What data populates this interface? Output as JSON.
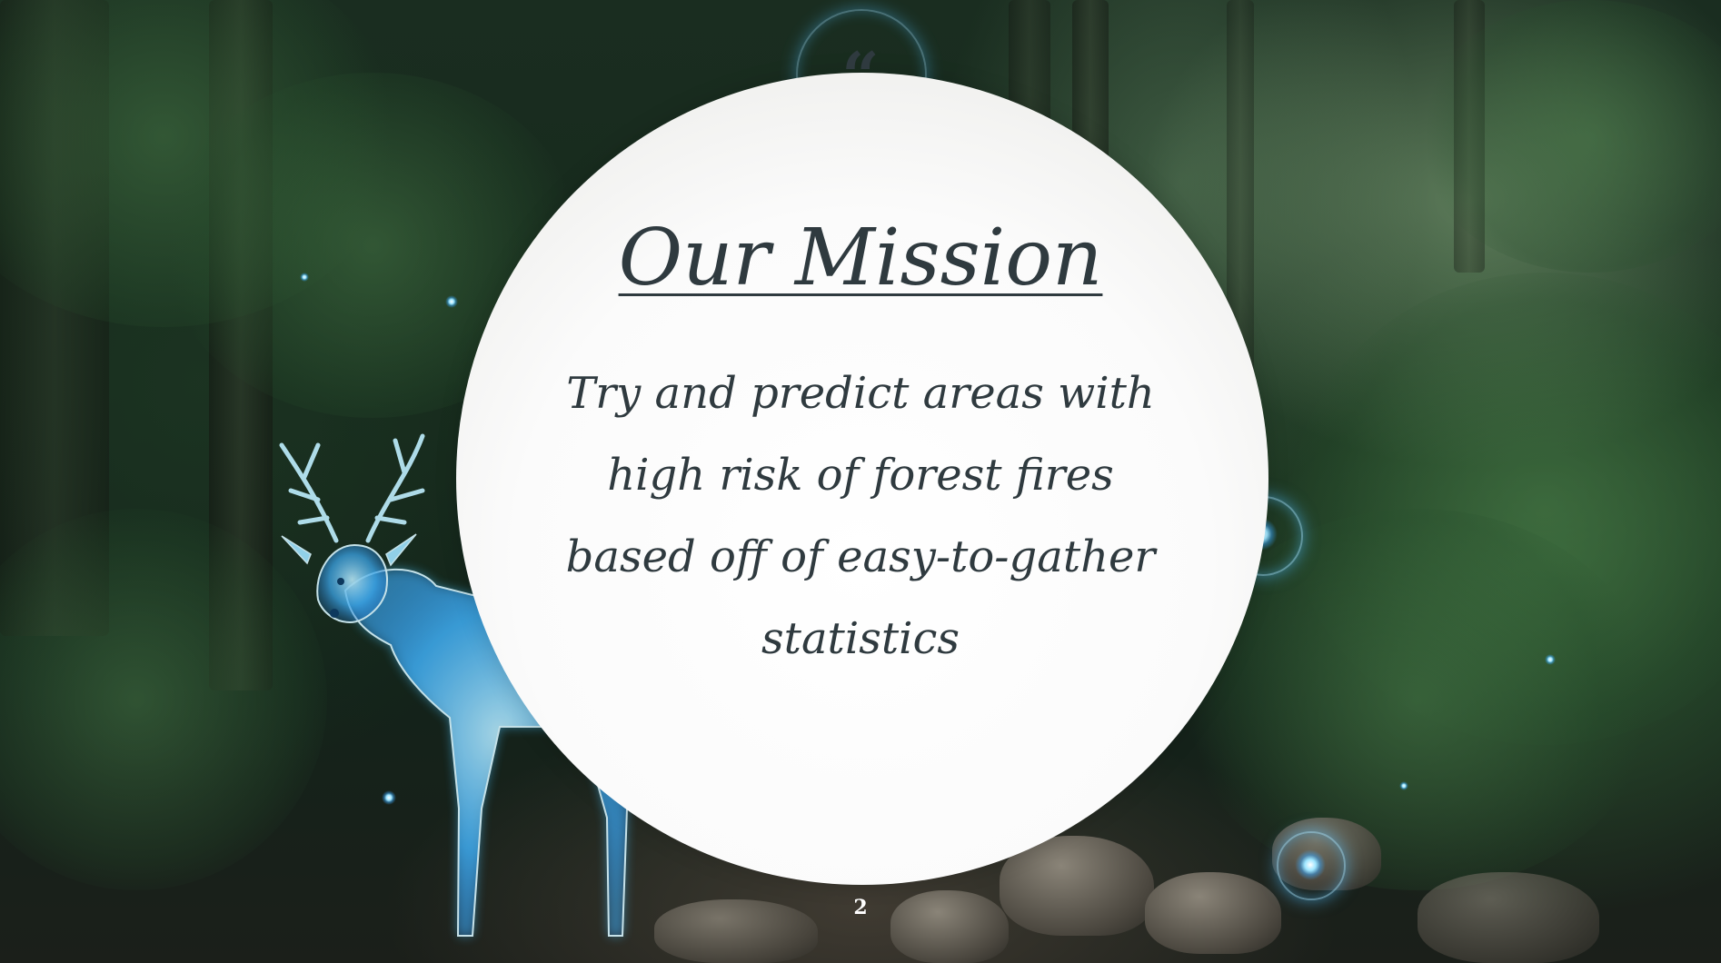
{
  "slide": {
    "quote_mark": "“",
    "title": "Our Mission",
    "body": "Try and predict areas with high risk of forest fires based off of easy-to-gather statistics",
    "page_number": "2"
  },
  "background": {
    "scene": "forest",
    "accent_glow_color": "#56c4ff",
    "circle_color": "#ffffff",
    "text_color": "#2f3a3f"
  },
  "icons": {
    "quote": "quote-icon",
    "stag": "spirit-stag-illustration",
    "orbs": "glowing-orb-icon"
  }
}
